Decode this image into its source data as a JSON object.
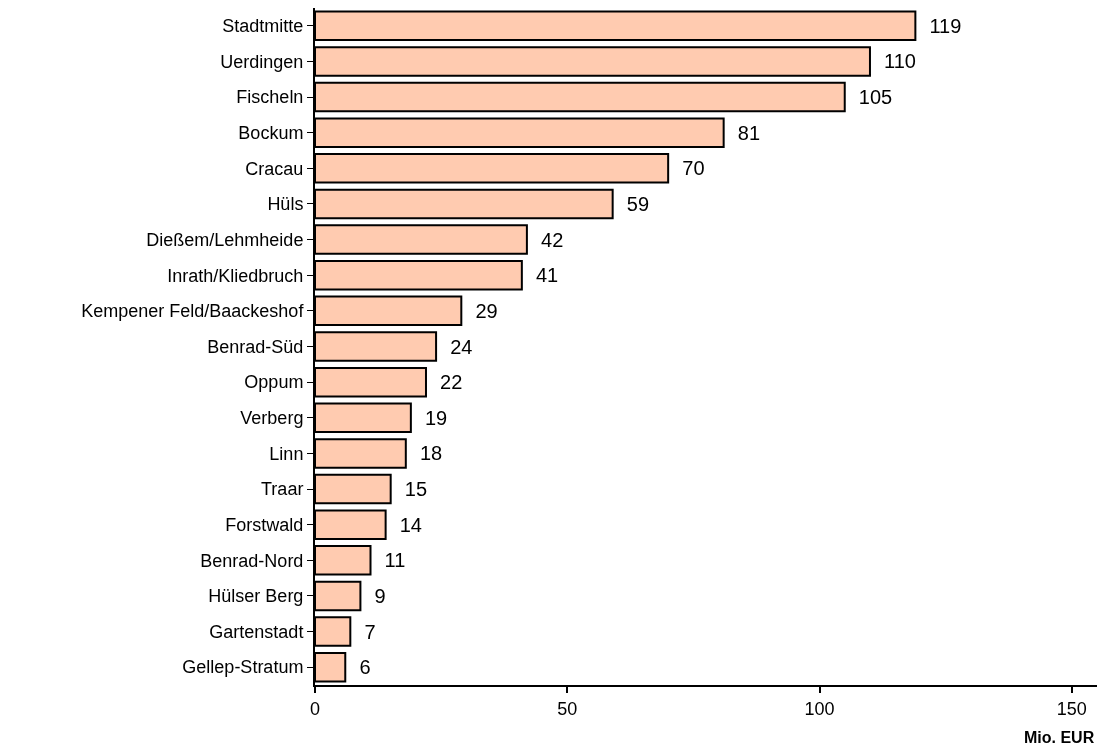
{
  "chart_data": {
    "type": "bar",
    "orientation": "horizontal",
    "categories": [
      "Stadtmitte",
      "Uerdingen",
      "Fischeln",
      "Bockum",
      "Cracau",
      "Hüls",
      "Dießem/Lehmheide",
      "Inrath/Kliedbruch",
      "Kempener Feld/Baackeshof",
      "Benrad-Süd",
      "Oppum",
      "Verberg",
      "Linn",
      "Traar",
      "Forstwald",
      "Benrad-Nord",
      "Hülser Berg",
      "Gartenstadt",
      "Gellep-Stratum"
    ],
    "values": [
      119,
      110,
      105,
      81,
      70,
      59,
      42,
      41,
      29,
      24,
      22,
      19,
      18,
      15,
      14,
      11,
      9,
      7,
      6
    ],
    "color": "#ffcbb0",
    "xlabel": "Mio. EUR",
    "xlim": [
      0,
      155
    ],
    "xticks": [
      0,
      50,
      100,
      150
    ],
    "data_labels": true,
    "grid": false
  }
}
